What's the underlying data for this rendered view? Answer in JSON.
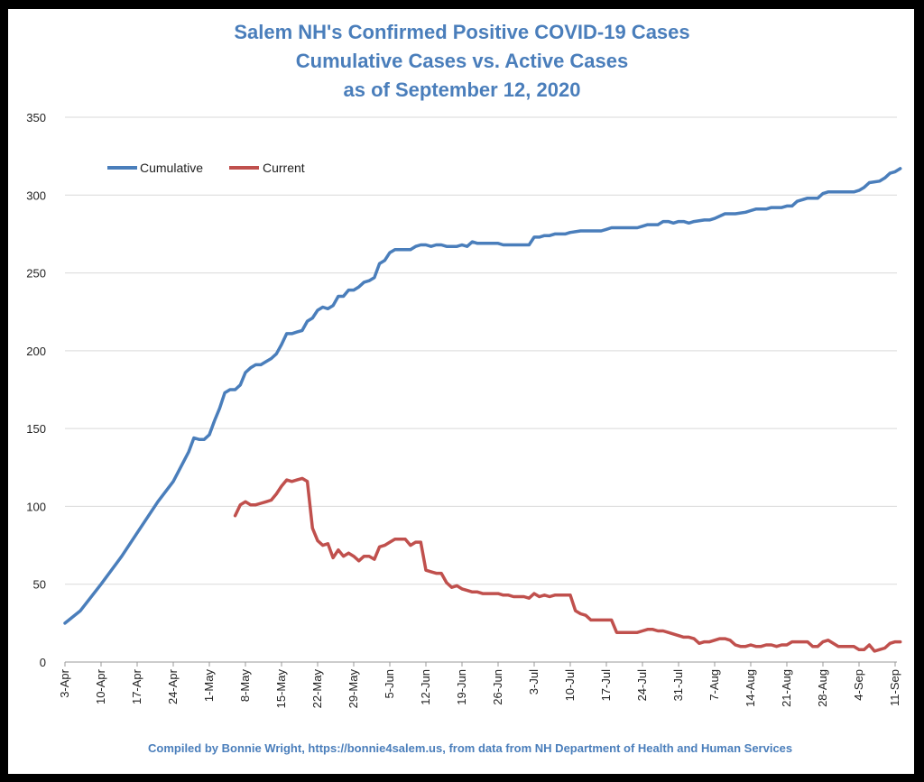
{
  "chart_data": {
    "type": "line",
    "title": [
      "Salem NH's Confirmed Positive COVID-19 Cases",
      "Cumulative Cases vs. Active Cases",
      "as of September 12, 2020"
    ],
    "footer": "Compiled by Bonnie Wright, https://bonnie4salem.us, from data from NH Department of Health and Human Services",
    "ylim": [
      0,
      350
    ],
    "y_ticks": [
      0,
      50,
      100,
      150,
      200,
      250,
      300,
      350
    ],
    "x_ticks": [
      "3-Apr",
      "10-Apr",
      "17-Apr",
      "24-Apr",
      "1-May",
      "8-May",
      "15-May",
      "22-May",
      "29-May",
      "5-Jun",
      "12-Jun",
      "19-Jun",
      "26-Jun",
      "3-Jul",
      "10-Jul",
      "17-Jul",
      "24-Jul",
      "31-Jul",
      "7-Aug",
      "14-Aug",
      "21-Aug",
      "28-Aug",
      "4-Sep",
      "11-Sep"
    ],
    "grid": true,
    "legend_position": "top-left",
    "series": [
      {
        "name": "Cumulative",
        "color": "#4a7ebb",
        "points": [
          [
            "3-Apr",
            25
          ],
          [
            "6-Apr",
            33
          ],
          [
            "10-Apr",
            50
          ],
          [
            "14-Apr",
            68
          ],
          [
            "17-Apr",
            83
          ],
          [
            "21-Apr",
            103
          ],
          [
            "24-Apr",
            116
          ],
          [
            "27-Apr",
            135
          ],
          [
            "28-Apr",
            144
          ],
          [
            "29-Apr",
            143
          ],
          [
            "30-Apr",
            143
          ],
          [
            "1-May",
            146
          ],
          [
            "2-May",
            155
          ],
          [
            "3-May",
            163
          ],
          [
            "4-May",
            173
          ],
          [
            "5-May",
            175
          ],
          [
            "6-May",
            175
          ],
          [
            "7-May",
            178
          ],
          [
            "8-May",
            186
          ],
          [
            "9-May",
            189
          ],
          [
            "10-May",
            191
          ],
          [
            "11-May",
            191
          ],
          [
            "12-May",
            193
          ],
          [
            "13-May",
            195
          ],
          [
            "14-May",
            198
          ],
          [
            "15-May",
            204
          ],
          [
            "16-May",
            211
          ],
          [
            "17-May",
            211
          ],
          [
            "18-May",
            212
          ],
          [
            "19-May",
            213
          ],
          [
            "20-May",
            219
          ],
          [
            "21-May",
            221
          ],
          [
            "22-May",
            226
          ],
          [
            "23-May",
            228
          ],
          [
            "24-May",
            227
          ],
          [
            "25-May",
            229
          ],
          [
            "26-May",
            235
          ],
          [
            "27-May",
            235
          ],
          [
            "28-May",
            239
          ],
          [
            "29-May",
            239
          ],
          [
            "30-May",
            241
          ],
          [
            "31-May",
            244
          ],
          [
            "1-Jun",
            245
          ],
          [
            "2-Jun",
            247
          ],
          [
            "3-Jun",
            256
          ],
          [
            "4-Jun",
            258
          ],
          [
            "5-Jun",
            263
          ],
          [
            "6-Jun",
            265
          ],
          [
            "7-Jun",
            265
          ],
          [
            "8-Jun",
            265
          ],
          [
            "9-Jun",
            265
          ],
          [
            "10-Jun",
            267
          ],
          [
            "11-Jun",
            268
          ],
          [
            "12-Jun",
            268
          ],
          [
            "13-Jun",
            267
          ],
          [
            "14-Jun",
            268
          ],
          [
            "15-Jun",
            268
          ],
          [
            "16-Jun",
            267
          ],
          [
            "17-Jun",
            267
          ],
          [
            "18-Jun",
            267
          ],
          [
            "19-Jun",
            268
          ],
          [
            "20-Jun",
            267
          ],
          [
            "21-Jun",
            270
          ],
          [
            "22-Jun",
            269
          ],
          [
            "23-Jun",
            269
          ],
          [
            "26-Jun",
            269
          ],
          [
            "27-Jun",
            268
          ],
          [
            "2-Jul",
            268
          ],
          [
            "3-Jul",
            273
          ],
          [
            "4-Jul",
            273
          ],
          [
            "5-Jul",
            274
          ],
          [
            "6-Jul",
            274
          ],
          [
            "7-Jul",
            275
          ],
          [
            "9-Jul",
            275
          ],
          [
            "10-Jul",
            276
          ],
          [
            "12-Jul",
            277
          ],
          [
            "16-Jul",
            277
          ],
          [
            "17-Jul",
            278
          ],
          [
            "18-Jul",
            279
          ],
          [
            "23-Jul",
            279
          ],
          [
            "24-Jul",
            280
          ],
          [
            "25-Jul",
            281
          ],
          [
            "27-Jul",
            281
          ],
          [
            "28-Jul",
            283
          ],
          [
            "29-Jul",
            283
          ],
          [
            "30-Jul",
            282
          ],
          [
            "31-Jul",
            283
          ],
          [
            "1-Aug",
            283
          ],
          [
            "2-Aug",
            282
          ],
          [
            "3-Aug",
            283
          ],
          [
            "5-Aug",
            284
          ],
          [
            "6-Aug",
            284
          ],
          [
            "7-Aug",
            285
          ],
          [
            "9-Aug",
            288
          ],
          [
            "11-Aug",
            288
          ],
          [
            "13-Aug",
            289
          ],
          [
            "14-Aug",
            290
          ],
          [
            "15-Aug",
            291
          ],
          [
            "17-Aug",
            291
          ],
          [
            "18-Aug",
            292
          ],
          [
            "20-Aug",
            292
          ],
          [
            "21-Aug",
            293
          ],
          [
            "22-Aug",
            293
          ],
          [
            "23-Aug",
            296
          ],
          [
            "25-Aug",
            298
          ],
          [
            "27-Aug",
            298
          ],
          [
            "28-Aug",
            301
          ],
          [
            "29-Aug",
            302
          ],
          [
            "3-Sep",
            302
          ],
          [
            "4-Sep",
            303
          ],
          [
            "5-Sep",
            305
          ],
          [
            "6-Sep",
            308
          ],
          [
            "8-Sep",
            309
          ],
          [
            "9-Sep",
            311
          ],
          [
            "10-Sep",
            314
          ],
          [
            "11-Sep",
            315
          ],
          [
            "12-Sep",
            317
          ]
        ]
      },
      {
        "name": "Current",
        "color": "#c0504d",
        "points": [
          [
            "6-May",
            94
          ],
          [
            "7-May",
            101
          ],
          [
            "8-May",
            103
          ],
          [
            "9-May",
            101
          ],
          [
            "10-May",
            101
          ],
          [
            "11-May",
            102
          ],
          [
            "12-May",
            103
          ],
          [
            "13-May",
            104
          ],
          [
            "14-May",
            108
          ],
          [
            "15-May",
            113
          ],
          [
            "16-May",
            117
          ],
          [
            "17-May",
            116
          ],
          [
            "18-May",
            117
          ],
          [
            "19-May",
            118
          ],
          [
            "20-May",
            116
          ],
          [
            "21-May",
            86
          ],
          [
            "22-May",
            78
          ],
          [
            "23-May",
            75
          ],
          [
            "24-May",
            76
          ],
          [
            "25-May",
            67
          ],
          [
            "26-May",
            72
          ],
          [
            "27-May",
            68
          ],
          [
            "28-May",
            70
          ],
          [
            "29-May",
            68
          ],
          [
            "30-May",
            65
          ],
          [
            "31-May",
            68
          ],
          [
            "1-Jun",
            68
          ],
          [
            "2-Jun",
            66
          ],
          [
            "3-Jun",
            74
          ],
          [
            "4-Jun",
            75
          ],
          [
            "5-Jun",
            77
          ],
          [
            "6-Jun",
            79
          ],
          [
            "7-Jun",
            79
          ],
          [
            "8-Jun",
            79
          ],
          [
            "9-Jun",
            75
          ],
          [
            "10-Jun",
            77
          ],
          [
            "11-Jun",
            77
          ],
          [
            "12-Jun",
            59
          ],
          [
            "13-Jun",
            58
          ],
          [
            "14-Jun",
            57
          ],
          [
            "15-Jun",
            57
          ],
          [
            "16-Jun",
            51
          ],
          [
            "17-Jun",
            48
          ],
          [
            "18-Jun",
            49
          ],
          [
            "19-Jun",
            47
          ],
          [
            "20-Jun",
            46
          ],
          [
            "21-Jun",
            45
          ],
          [
            "22-Jun",
            45
          ],
          [
            "23-Jun",
            44
          ],
          [
            "25-Jun",
            44
          ],
          [
            "26-Jun",
            44
          ],
          [
            "27-Jun",
            43
          ],
          [
            "28-Jun",
            43
          ],
          [
            "29-Jun",
            42
          ],
          [
            "1-Jul",
            42
          ],
          [
            "2-Jul",
            41
          ],
          [
            "3-Jul",
            44
          ],
          [
            "4-Jul",
            42
          ],
          [
            "5-Jul",
            43
          ],
          [
            "6-Jul",
            42
          ],
          [
            "7-Jul",
            43
          ],
          [
            "10-Jul",
            43
          ],
          [
            "11-Jul",
            33
          ],
          [
            "12-Jul",
            31
          ],
          [
            "13-Jul",
            30
          ],
          [
            "14-Jul",
            27
          ],
          [
            "18-Jul",
            27
          ],
          [
            "19-Jul",
            19
          ],
          [
            "23-Jul",
            19
          ],
          [
            "24-Jul",
            20
          ],
          [
            "25-Jul",
            21
          ],
          [
            "26-Jul",
            21
          ],
          [
            "27-Jul",
            20
          ],
          [
            "28-Jul",
            20
          ],
          [
            "29-Jul",
            19
          ],
          [
            "30-Jul",
            18
          ],
          [
            "31-Jul",
            17
          ],
          [
            "1-Aug",
            16
          ],
          [
            "2-Aug",
            16
          ],
          [
            "3-Aug",
            15
          ],
          [
            "4-Aug",
            12
          ],
          [
            "5-Aug",
            13
          ],
          [
            "6-Aug",
            13
          ],
          [
            "7-Aug",
            14
          ],
          [
            "8-Aug",
            15
          ],
          [
            "9-Aug",
            15
          ],
          [
            "10-Aug",
            14
          ],
          [
            "11-Aug",
            11
          ],
          [
            "12-Aug",
            10
          ],
          [
            "13-Aug",
            10
          ],
          [
            "14-Aug",
            11
          ],
          [
            "15-Aug",
            10
          ],
          [
            "16-Aug",
            10
          ],
          [
            "17-Aug",
            11
          ],
          [
            "18-Aug",
            11
          ],
          [
            "19-Aug",
            10
          ],
          [
            "20-Aug",
            11
          ],
          [
            "21-Aug",
            11
          ],
          [
            "22-Aug",
            13
          ],
          [
            "25-Aug",
            13
          ],
          [
            "26-Aug",
            10
          ],
          [
            "27-Aug",
            10
          ],
          [
            "28-Aug",
            13
          ],
          [
            "29-Aug",
            14
          ],
          [
            "30-Aug",
            12
          ],
          [
            "31-Aug",
            10
          ],
          [
            "3-Sep",
            10
          ],
          [
            "4-Sep",
            8
          ],
          [
            "5-Sep",
            8
          ],
          [
            "6-Sep",
            11
          ],
          [
            "7-Sep",
            7
          ],
          [
            "8-Sep",
            8
          ],
          [
            "9-Sep",
            9
          ],
          [
            "10-Sep",
            12
          ],
          [
            "11-Sep",
            13
          ],
          [
            "12-Sep",
            13
          ]
        ]
      }
    ]
  }
}
